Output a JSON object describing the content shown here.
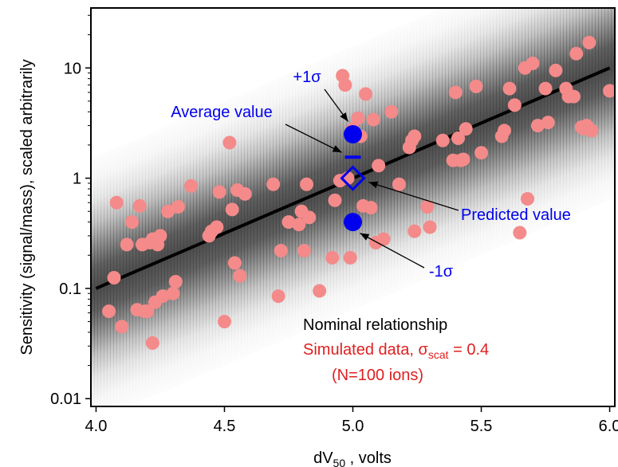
{
  "chart_data": {
    "type": "scatter",
    "title": "",
    "xlabel_main": "dV",
    "xlabel_sub": "50",
    "xlabel_rest": " , volts",
    "ylabel": "Sensitivity (signal/mass), scaled arbitrarily",
    "x_scale": "linear",
    "y_scale": "log",
    "xlim": [
      3.98,
      6.02
    ],
    "ylim": [
      0.0085,
      35
    ],
    "x_ticks": [
      4.0,
      4.5,
      5.0,
      5.5,
      6.0
    ],
    "x_tick_labels": [
      "4.0",
      "4.5",
      "5.0",
      "5.5",
      "6.0"
    ],
    "y_ticks": [
      0.01,
      0.1,
      1,
      10
    ],
    "y_tick_labels": [
      "0.01",
      "0.1",
      "1",
      "10"
    ],
    "grid": false,
    "colors": {
      "points": "#f48a8a",
      "line": "#000000",
      "markers": "#0000ee",
      "text_blue": "#0000ee",
      "text_red": "#e02020",
      "band_dark": "#3c3c3c"
    },
    "nominal_line": {
      "x": [
        4.0,
        6.0
      ],
      "y": [
        0.1,
        10
      ]
    },
    "band_sigma_scat": 0.4,
    "scatter": {
      "name": "Simulated data",
      "x": [
        4.05,
        4.07,
        4.08,
        4.1,
        4.12,
        4.14,
        4.16,
        4.17,
        4.18,
        4.19,
        4.2,
        4.21,
        4.22,
        4.22,
        4.23,
        4.24,
        4.25,
        4.26,
        4.28,
        4.3,
        4.31,
        4.32,
        4.37,
        4.44,
        4.45,
        4.47,
        4.48,
        4.5,
        4.52,
        4.53,
        4.54,
        4.55,
        4.56,
        4.58,
        4.69,
        4.71,
        4.72,
        4.75,
        4.79,
        4.8,
        4.81,
        4.82,
        4.83,
        4.87,
        4.92,
        4.93,
        4.95,
        4.96,
        4.97,
        4.98,
        4.99,
        5.0,
        5.02,
        5.03,
        5.04,
        5.05,
        5.07,
        5.08,
        5.09,
        5.1,
        5.12,
        5.15,
        5.18,
        5.22,
        5.23,
        5.24,
        5.24,
        5.29,
        5.3,
        5.35,
        5.39,
        5.4,
        5.41,
        5.42,
        5.43,
        5.44,
        5.48,
        5.5,
        5.58,
        5.59,
        5.61,
        5.63,
        5.65,
        5.67,
        5.68,
        5.7,
        5.72,
        5.75,
        5.76,
        5.79,
        5.83,
        5.84,
        5.86,
        5.87,
        5.89,
        5.9,
        5.92,
        5.93,
        6.0,
        5.91
      ],
      "y": [
        0.062,
        0.125,
        0.6,
        0.045,
        0.25,
        0.4,
        0.064,
        0.56,
        0.25,
        0.062,
        0.062,
        0.26,
        0.032,
        0.28,
        0.075,
        0.25,
        0.3,
        0.085,
        0.5,
        0.09,
        0.115,
        0.55,
        0.85,
        0.3,
        0.33,
        0.36,
        0.75,
        0.05,
        2.1,
        0.52,
        0.17,
        0.78,
        0.13,
        0.72,
        0.88,
        0.085,
        0.22,
        0.4,
        0.38,
        0.5,
        0.22,
        0.88,
        0.44,
        0.095,
        0.19,
        0.63,
        0.95,
        8.5,
        7.0,
        1.0,
        0.19,
        2.8,
        3.5,
        2.4,
        0.56,
        5.8,
        0.54,
        3.4,
        0.26,
        1.3,
        0.28,
        4.0,
        0.88,
        1.9,
        2.2,
        0.33,
        2.4,
        0.55,
        0.36,
        2.2,
        1.45,
        6.0,
        2.3,
        1.45,
        1.48,
        2.8,
        6.8,
        1.7,
        2.4,
        2.7,
        6.5,
        4.6,
        0.32,
        10.0,
        0.65,
        11.0,
        3.0,
        6.5,
        3.2,
        9.5,
        6.5,
        5.5,
        5.5,
        13.5,
        2.9,
        2.8,
        17.0,
        2.7,
        6.2,
        3.0
      ]
    },
    "highlight": {
      "x": 5.0,
      "plus_sigma_y": 2.5,
      "minus_sigma_y": 0.4,
      "average_y": 1.55,
      "predicted_y": 1.0
    },
    "annotations": {
      "plus_sigma": "+1σ",
      "minus_sigma": "-1σ",
      "average": "Average value",
      "predicted": "Predicted value"
    },
    "legend": {
      "placement": "bottom-right",
      "line1": "Nominal relationship",
      "line2_main": "Simulated data, σ",
      "line2_sub": "scat",
      "line2_rest": " = 0.4",
      "line3": "(N=100 ions)"
    }
  }
}
